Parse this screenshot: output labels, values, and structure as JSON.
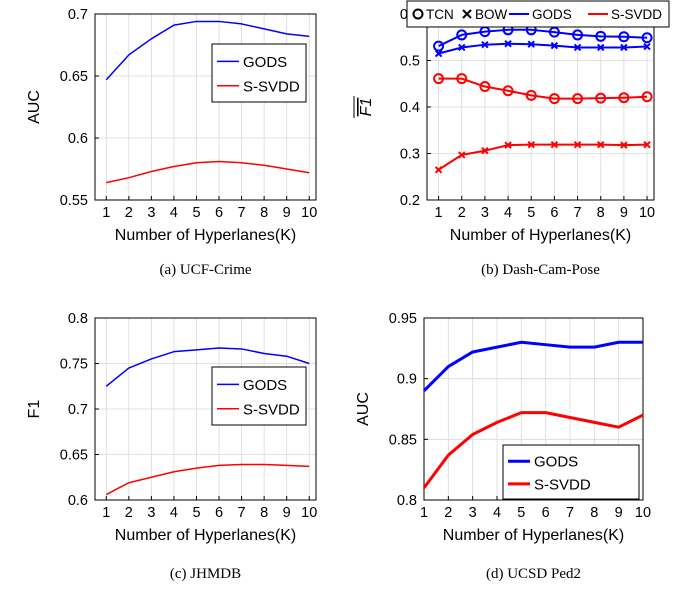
{
  "chart_data": [
    {
      "id": "a",
      "type": "line",
      "caption": "(a)  UCF-Crime",
      "xlabel": "Number of Hyperlanes(K)",
      "ylabel": "AUC",
      "x": [
        1,
        2,
        3,
        4,
        5,
        6,
        7,
        8,
        9,
        10
      ],
      "xlim": [
        0.5,
        10.3
      ],
      "ylim": [
        0.55,
        0.7
      ],
      "yticks": [
        0.55,
        0.6,
        0.65,
        0.7
      ],
      "ytick_labels": [
        "0.55",
        "0.6",
        "0.65",
        "0.7"
      ],
      "grid": true,
      "legend_position": "center-right",
      "series": [
        {
          "name": "GODS",
          "color": "#0000ff",
          "line_width": 1.5,
          "values": [
            0.647,
            0.667,
            0.68,
            0.691,
            0.694,
            0.694,
            0.692,
            0.688,
            0.684,
            0.682
          ]
        },
        {
          "name": "S-SVDD",
          "color": "#ff0000",
          "line_width": 1.5,
          "values": [
            0.564,
            0.568,
            0.573,
            0.577,
            0.58,
            0.581,
            0.58,
            0.578,
            0.575,
            0.572
          ]
        }
      ]
    },
    {
      "id": "b",
      "type": "line",
      "caption": "(b)  Dash-Cam-Pose",
      "xlabel": "Number of Hyperlanes(K)",
      "ylabel": "F1",
      "ylabel_overline": true,
      "x": [
        1,
        2,
        3,
        4,
        5,
        6,
        7,
        8,
        9,
        10
      ],
      "xlim": [
        0.5,
        10.3
      ],
      "ylim": [
        0.2,
        0.6
      ],
      "yticks": [
        0.2,
        0.3,
        0.4,
        0.5,
        0.6
      ],
      "ytick_labels": [
        "0.2",
        "0.3",
        "0.4",
        "0.5",
        "0.6"
      ],
      "grid": true,
      "legend_position": "top",
      "legend": [
        {
          "label": "TCN",
          "kind": "marker-circle"
        },
        {
          "label": "BOW",
          "kind": "marker-x"
        },
        {
          "label": "GODS",
          "kind": "line",
          "color": "#0000ff"
        },
        {
          "label": "S-SVDD",
          "kind": "line",
          "color": "#ff0000"
        }
      ],
      "series": [
        {
          "name": "GODS TCN",
          "color": "#0000ff",
          "marker": "circle",
          "line_width": 2,
          "values": [
            0.531,
            0.555,
            0.562,
            0.566,
            0.566,
            0.561,
            0.555,
            0.552,
            0.551,
            0.549
          ]
        },
        {
          "name": "GODS BOW",
          "color": "#0000ff",
          "marker": "x",
          "line_width": 2,
          "values": [
            0.515,
            0.528,
            0.534,
            0.536,
            0.535,
            0.532,
            0.528,
            0.528,
            0.528,
            0.53
          ]
        },
        {
          "name": "S-SVDD TCN",
          "color": "#ff0000",
          "marker": "circle",
          "line_width": 2,
          "values": [
            0.461,
            0.461,
            0.444,
            0.435,
            0.425,
            0.418,
            0.418,
            0.419,
            0.42,
            0.422
          ]
        },
        {
          "name": "S-SVDD BOW",
          "color": "#ff0000",
          "marker": "x",
          "line_width": 2,
          "values": [
            0.265,
            0.297,
            0.306,
            0.318,
            0.319,
            0.319,
            0.319,
            0.319,
            0.318,
            0.319
          ]
        }
      ]
    },
    {
      "id": "c",
      "type": "line",
      "caption": "(c)  JHMDB",
      "xlabel": "Number of Hyperlanes(K)",
      "ylabel": "F1",
      "x": [
        1,
        2,
        3,
        4,
        5,
        6,
        7,
        8,
        9,
        10
      ],
      "xlim": [
        0.5,
        10.3
      ],
      "ylim": [
        0.6,
        0.8
      ],
      "yticks": [
        0.6,
        0.65,
        0.7,
        0.75,
        0.8
      ],
      "ytick_labels": [
        "0.6",
        "0.65",
        "0.7",
        "0.75",
        "0.8"
      ],
      "grid": true,
      "legend_position": "center-right",
      "series": [
        {
          "name": "GODS",
          "color": "#0000ff",
          "line_width": 1.5,
          "values": [
            0.725,
            0.745,
            0.755,
            0.763,
            0.765,
            0.767,
            0.766,
            0.761,
            0.758,
            0.75
          ]
        },
        {
          "name": "S-SVDD",
          "color": "#ff0000",
          "line_width": 1.5,
          "values": [
            0.606,
            0.619,
            0.625,
            0.631,
            0.635,
            0.638,
            0.639,
            0.639,
            0.638,
            0.637
          ]
        }
      ]
    },
    {
      "id": "d",
      "type": "line",
      "caption": "(d)  UCSD Ped2",
      "xlabel": "Number of Hyperlanes(K)",
      "ylabel": "AUC",
      "x": [
        1,
        2,
        3,
        4,
        5,
        6,
        7,
        8,
        9,
        10
      ],
      "xlim": [
        1,
        10
      ],
      "ylim": [
        0.8,
        0.95
      ],
      "yticks": [
        0.8,
        0.85,
        0.9,
        0.95
      ],
      "ytick_labels": [
        "0.8",
        "0.85",
        "0.9",
        "0.95"
      ],
      "grid": true,
      "legend_position": "bottom-right",
      "series": [
        {
          "name": "GODS",
          "color": "#0000ff",
          "line_width": 3,
          "values": [
            0.89,
            0.91,
            0.922,
            0.926,
            0.93,
            0.928,
            0.926,
            0.926,
            0.93,
            0.93
          ]
        },
        {
          "name": "S-SVDD",
          "color": "#ff0000",
          "line_width": 3,
          "values": [
            0.81,
            0.837,
            0.854,
            0.864,
            0.872,
            0.872,
            0.868,
            0.864,
            0.86,
            0.87
          ]
        }
      ]
    }
  ]
}
